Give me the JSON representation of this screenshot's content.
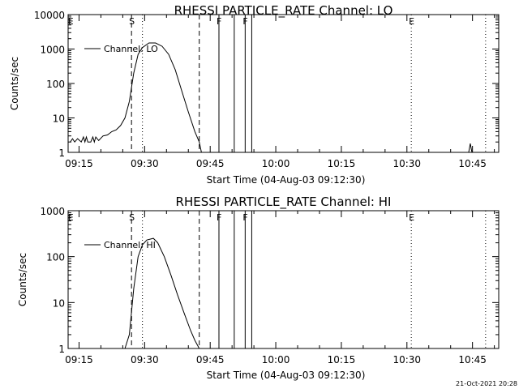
{
  "footer": {
    "timestamp": "21-Oct-2021 20:28"
  },
  "chart_data": [
    {
      "type": "line",
      "title": "RHESSI PARTICLE_RATE Channel: LO",
      "xlabel": "Start Time (04-Aug-03 09:12:30)",
      "ylabel": "Counts/sec",
      "yscale": "log",
      "xlim": [
        "09:12:30",
        "10:51:00"
      ],
      "ylim": [
        1,
        10000
      ],
      "xticks": [
        "09:15",
        "09:30",
        "09:45",
        "10:00",
        "10:15",
        "10:30",
        "10:45"
      ],
      "yticks": [
        {
          "value": 1,
          "label": "1"
        },
        {
          "value": 10,
          "label": "10"
        },
        {
          "value": 100,
          "label": "100"
        },
        {
          "value": 1000,
          "label": "1000"
        },
        {
          "value": 10000,
          "label": "10000"
        }
      ],
      "grid": false,
      "legend": "top-left",
      "series": [
        {
          "name": "Channel: LO",
          "points": [
            [
              "09:13:00",
              2.0
            ],
            [
              "09:13:30",
              2.5
            ],
            [
              "09:14:00",
              2.0
            ],
            [
              "09:14:40",
              2.5
            ],
            [
              "09:15:30",
              2.0
            ],
            [
              "09:16:00",
              2.8
            ],
            [
              "09:16:20",
              2.0
            ],
            [
              "09:16:40",
              2.8
            ],
            [
              "09:17:00",
              2.0
            ],
            [
              "09:17:40",
              2.0
            ],
            [
              "09:18:10",
              2.8
            ],
            [
              "09:18:30",
              2.0
            ],
            [
              "09:18:50",
              2.8
            ],
            [
              "09:19:30",
              2.2
            ],
            [
              "09:20:30",
              3.0
            ],
            [
              "09:21:30",
              3.2
            ],
            [
              "09:22:30",
              4.0
            ],
            [
              "09:23:30",
              4.5
            ],
            [
              "09:24:30",
              6.0
            ],
            [
              "09:25:30",
              10.0
            ],
            [
              "09:26:30",
              30.0
            ],
            [
              "09:27:30",
              200.0
            ],
            [
              "09:28:30",
              700.0
            ],
            [
              "09:29:30",
              1100.0
            ],
            [
              "09:31:00",
              1500.0
            ],
            [
              "09:32:30",
              1500.0
            ],
            [
              "09:34:00",
              1200.0
            ],
            [
              "09:35:30",
              700.0
            ],
            [
              "09:37:00",
              250.0
            ],
            [
              "09:38:30",
              60.0
            ],
            [
              "09:40:00",
              15.0
            ],
            [
              "09:41:30",
              4.0
            ],
            [
              "09:42:30",
              2.0
            ],
            [
              "09:43:00",
              1.0
            ]
          ],
          "spikes": [
            [
              "10:44:30",
              1.8
            ]
          ]
        }
      ],
      "markers": [
        {
          "label": "E",
          "time": "09:13:00",
          "line": "none"
        },
        {
          "label": "S",
          "time": "09:27:00",
          "line": "dashed"
        },
        {
          "label": "",
          "time": "09:29:30",
          "line": "dotted"
        },
        {
          "label": "",
          "time": "09:42:30",
          "line": "dashed"
        },
        {
          "label": "F",
          "time": "09:47:00",
          "line": "solid"
        },
        {
          "label": "",
          "time": "09:50:30",
          "line": "solid"
        },
        {
          "label": "F",
          "time": "09:53:00",
          "line": "solid"
        },
        {
          "label": "",
          "time": "09:54:30",
          "line": "solid"
        },
        {
          "label": "E",
          "time": "10:31:00",
          "line": "dotted"
        },
        {
          "label": "",
          "time": "10:48:00",
          "line": "dotted"
        }
      ]
    },
    {
      "type": "line",
      "title": "RHESSI PARTICLE_RATE Channel: HI",
      "xlabel": "Start Time (04-Aug-03 09:12:30)",
      "ylabel": "Counts/sec",
      "yscale": "log",
      "xlim": [
        "09:12:30",
        "10:51:00"
      ],
      "ylim": [
        1,
        1000
      ],
      "xticks": [
        "09:15",
        "09:30",
        "09:45",
        "10:00",
        "10:15",
        "10:30",
        "10:45"
      ],
      "yticks": [
        {
          "value": 1,
          "label": "1"
        },
        {
          "value": 10,
          "label": "10"
        },
        {
          "value": 100,
          "label": "100"
        },
        {
          "value": 1000,
          "label": "1000"
        }
      ],
      "grid": false,
      "legend": "top-left",
      "series": [
        {
          "name": "Channel: HI",
          "points": [
            [
              "09:25:30",
              1.0
            ],
            [
              "09:26:30",
              2.0
            ],
            [
              "09:27:30",
              20.0
            ],
            [
              "09:28:30",
              100.0
            ],
            [
              "09:29:30",
              180.0
            ],
            [
              "09:30:30",
              230.0
            ],
            [
              "09:32:00",
              250.0
            ],
            [
              "09:33:00",
              200.0
            ],
            [
              "09:34:30",
              100.0
            ],
            [
              "09:36:00",
              40.0
            ],
            [
              "09:37:30",
              15.0
            ],
            [
              "09:39:00",
              6.0
            ],
            [
              "09:40:30",
              2.5
            ],
            [
              "09:41:30",
              1.5
            ],
            [
              "09:42:30",
              1.0
            ]
          ],
          "spikes": []
        }
      ],
      "markers": [
        {
          "label": "E",
          "time": "09:13:00",
          "line": "none"
        },
        {
          "label": "S",
          "time": "09:27:00",
          "line": "dashed"
        },
        {
          "label": "",
          "time": "09:29:30",
          "line": "dotted"
        },
        {
          "label": "",
          "time": "09:42:30",
          "line": "dashed"
        },
        {
          "label": "F",
          "time": "09:47:00",
          "line": "solid"
        },
        {
          "label": "",
          "time": "09:50:30",
          "line": "solid"
        },
        {
          "label": "F",
          "time": "09:53:00",
          "line": "solid"
        },
        {
          "label": "",
          "time": "09:54:30",
          "line": "solid"
        },
        {
          "label": "E",
          "time": "10:31:00",
          "line": "dotted"
        },
        {
          "label": "",
          "time": "10:48:00",
          "line": "dotted"
        }
      ]
    }
  ]
}
